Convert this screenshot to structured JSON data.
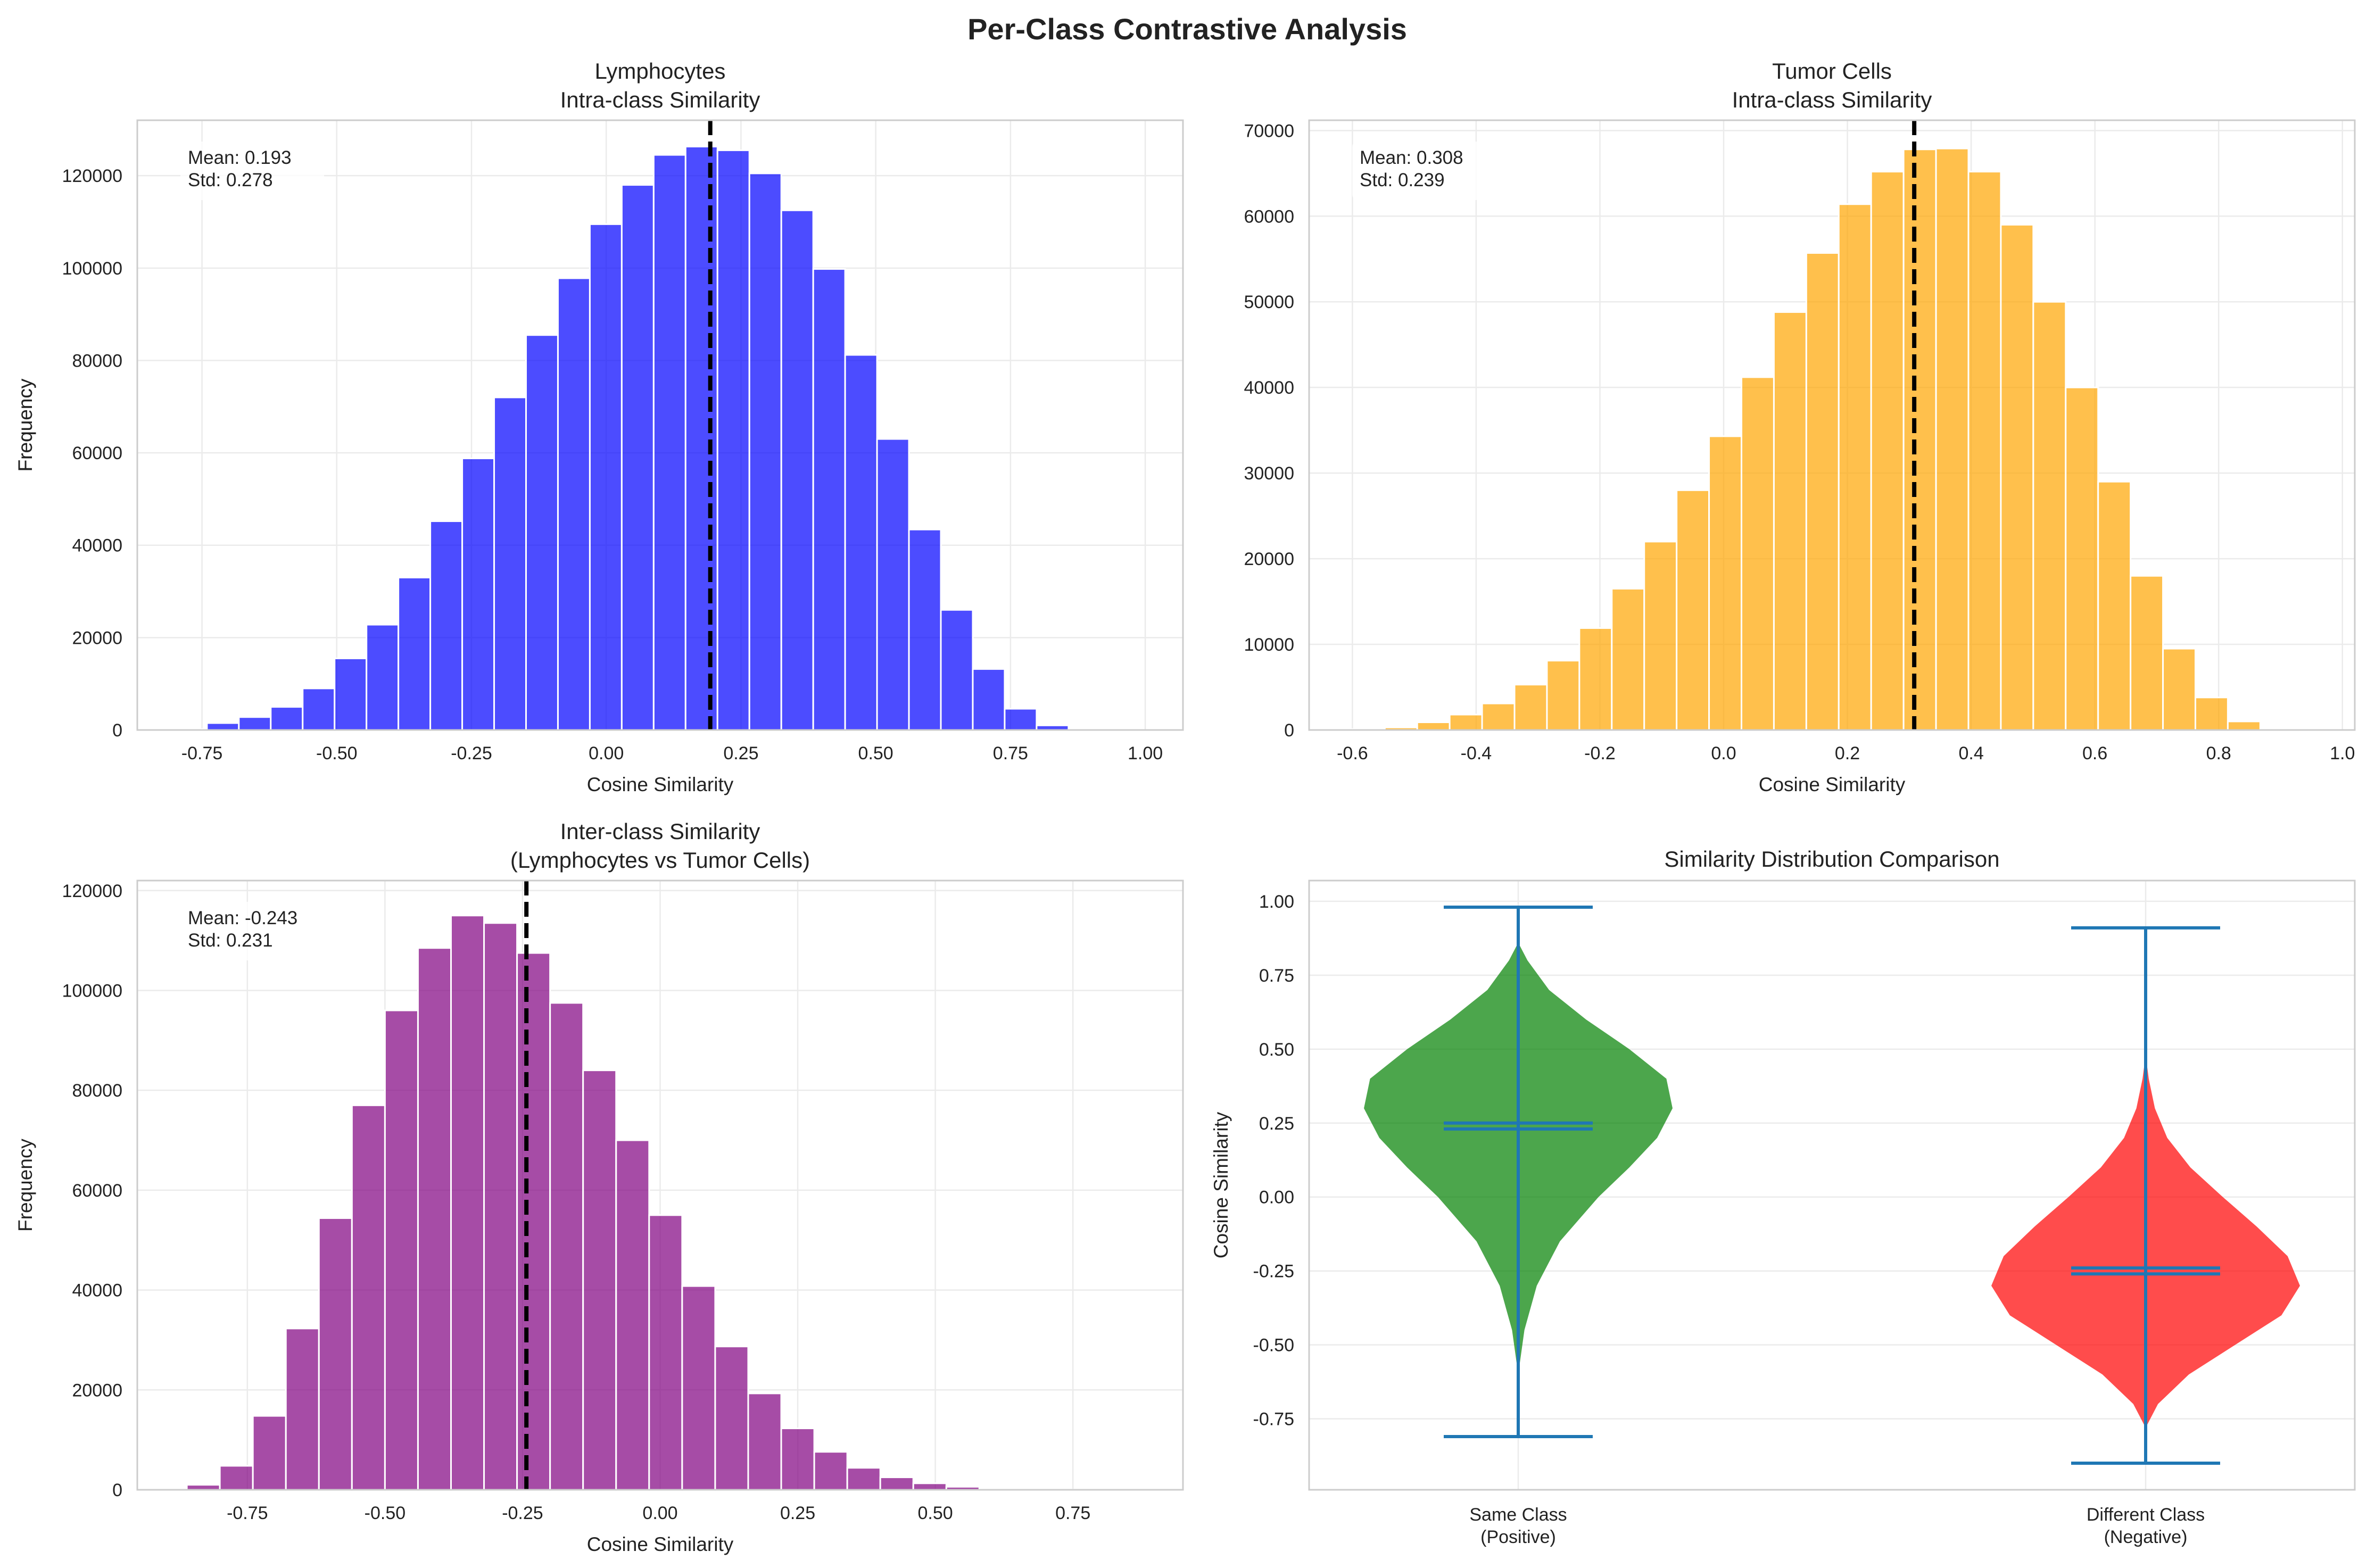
{
  "figure": {
    "title": "Per-Class Contrastive Analysis",
    "colors": {
      "lymphocytes": "#0000ff",
      "tumor": "#ffa500",
      "inter": "#800080",
      "same_class": "#008000",
      "different_class": "#ff0000",
      "violin_lines": "#1f77b4",
      "mean_line": "#000000"
    }
  },
  "chart_data": [
    {
      "type": "bar",
      "subtype": "histogram",
      "title_lines": [
        "Lymphocytes",
        "Intra-class Similarity"
      ],
      "xlabel": "Cosine Similarity",
      "ylabel": "Frequency",
      "xlim": [
        -0.87,
        1.07
      ],
      "ylim": [
        0,
        132000
      ],
      "xticks": [
        -0.75,
        -0.5,
        -0.25,
        0.0,
        0.25,
        0.5,
        0.75,
        1.0
      ],
      "xtick_labels": [
        "-0.75",
        "-0.50",
        "-0.25",
        "0.00",
        "0.25",
        "0.50",
        "0.75",
        "1.00"
      ],
      "yticks": [
        0,
        20000,
        40000,
        60000,
        80000,
        100000,
        120000
      ],
      "ytick_labels": [
        "0",
        "20000",
        "40000",
        "60000",
        "80000",
        "100000",
        "120000"
      ],
      "bin_start": -0.8,
      "bin_width": 0.0592,
      "values": [
        200,
        1500,
        2800,
        5000,
        9000,
        15500,
        22800,
        33000,
        45200,
        58800,
        72000,
        85500,
        97800,
        109500,
        118000,
        124500,
        126300,
        125500,
        120500,
        112500,
        99800,
        81200,
        63000,
        43400,
        26000,
        13200,
        4600,
        1000
      ],
      "mean": 0.193,
      "stats": [
        "Mean: 0.193",
        "Std: 0.278"
      ],
      "color_key": "lymphocytes",
      "grid": true
    },
    {
      "type": "bar",
      "subtype": "histogram",
      "title_lines": [
        "Tumor Cells",
        "Intra-class Similarity"
      ],
      "xlabel": "Cosine Similarity",
      "ylabel": "Frequency",
      "xlim": [
        -0.67,
        1.02
      ],
      "ylim": [
        0,
        71200
      ],
      "xticks": [
        -0.6,
        -0.4,
        -0.2,
        0.0,
        0.2,
        0.4,
        0.6,
        0.8,
        1.0
      ],
      "xtick_labels": [
        "-0.6",
        "-0.4",
        "-0.2",
        "0.0",
        "0.2",
        "0.4",
        "0.6",
        "0.8",
        "1.0"
      ],
      "yticks": [
        0,
        10000,
        20000,
        30000,
        40000,
        50000,
        60000,
        70000
      ],
      "ytick_labels": [
        "0",
        "10000",
        "20000",
        "30000",
        "40000",
        "50000",
        "60000",
        "70000"
      ],
      "bin_start": -0.6,
      "bin_width": 0.0524,
      "values": [
        100,
        300,
        900,
        1800,
        3100,
        5300,
        8100,
        11900,
        16500,
        22000,
        28000,
        34300,
        41200,
        48800,
        55700,
        61400,
        65200,
        67800,
        67900,
        65200,
        59000,
        50000,
        40000,
        29000,
        18000,
        9500,
        3800,
        1000
      ],
      "mean": 0.308,
      "stats": [
        "Mean: 0.308",
        "Std: 0.239"
      ],
      "color_key": "tumor",
      "grid": true
    },
    {
      "type": "bar",
      "subtype": "histogram",
      "title_lines": [
        "Inter-class Similarity",
        "(Lymphocytes vs Tumor Cells)"
      ],
      "xlabel": "Cosine Similarity",
      "ylabel": "Frequency",
      "xlim": [
        -0.95,
        0.95
      ],
      "ylim": [
        0,
        122000
      ],
      "xticks": [
        -0.75,
        -0.5,
        -0.25,
        0.0,
        0.25,
        0.5,
        0.75
      ],
      "xtick_labels": [
        "-0.75",
        "-0.50",
        "-0.25",
        "0.00",
        "0.25",
        "0.50",
        "0.75"
      ],
      "yticks": [
        0,
        20000,
        40000,
        60000,
        80000,
        100000,
        120000
      ],
      "ytick_labels": [
        "0",
        "20000",
        "40000",
        "60000",
        "80000",
        "100000",
        "120000"
      ],
      "bin_start": -0.86,
      "bin_width": 0.06,
      "values": [
        1000,
        4800,
        14800,
        32300,
        54400,
        77000,
        96000,
        108500,
        115000,
        113500,
        107500,
        97500,
        84000,
        70000,
        55000,
        40800,
        28700,
        19300,
        12300,
        7600,
        4400,
        2500,
        1300,
        600,
        250,
        100,
        50,
        20
      ],
      "mean": -0.243,
      "stats": [
        "Mean: -0.243",
        "Std: 0.231"
      ],
      "color_key": "inter",
      "grid": true
    },
    {
      "type": "violin",
      "title": "Similarity Distribution Comparison",
      "ylabel": "Cosine Similarity",
      "ylim": [
        -0.99,
        1.07
      ],
      "yticks": [
        -0.75,
        -0.5,
        -0.25,
        0.0,
        0.25,
        0.5,
        0.75,
        1.0
      ],
      "ytick_labels": [
        "-0.75",
        "-0.50",
        "-0.25",
        "0.00",
        "0.25",
        "0.50",
        "0.75",
        "1.00"
      ],
      "categories": [
        {
          "label_lines": [
            "Same Class",
            "(Positive)"
          ],
          "min": -0.81,
          "max": 0.98,
          "mean": 0.25,
          "median": 0.23,
          "color_key": "same_class",
          "profile": [
            [
              -0.6,
              0.0
            ],
            [
              -0.45,
              0.04
            ],
            [
              -0.3,
              0.12
            ],
            [
              -0.15,
              0.27
            ],
            [
              0.0,
              0.52
            ],
            [
              0.1,
              0.72
            ],
            [
              0.2,
              0.9
            ],
            [
              0.3,
              1.0
            ],
            [
              0.4,
              0.96
            ],
            [
              0.5,
              0.72
            ],
            [
              0.6,
              0.44
            ],
            [
              0.7,
              0.2
            ],
            [
              0.8,
              0.06
            ],
            [
              0.86,
              0.0
            ]
          ]
        },
        {
          "label_lines": [
            "Different Class",
            "(Negative)"
          ],
          "min": -0.9,
          "max": 0.91,
          "mean": -0.24,
          "median": -0.26,
          "color_key": "different_class",
          "profile": [
            [
              -0.78,
              0.0
            ],
            [
              -0.7,
              0.08
            ],
            [
              -0.6,
              0.28
            ],
            [
              -0.5,
              0.58
            ],
            [
              -0.4,
              0.88
            ],
            [
              -0.3,
              1.0
            ],
            [
              -0.2,
              0.92
            ],
            [
              -0.1,
              0.72
            ],
            [
              0.0,
              0.5
            ],
            [
              0.1,
              0.29
            ],
            [
              0.2,
              0.14
            ],
            [
              0.3,
              0.06
            ],
            [
              0.4,
              0.02
            ],
            [
              0.48,
              0.0
            ]
          ]
        }
      ],
      "grid": true
    }
  ]
}
